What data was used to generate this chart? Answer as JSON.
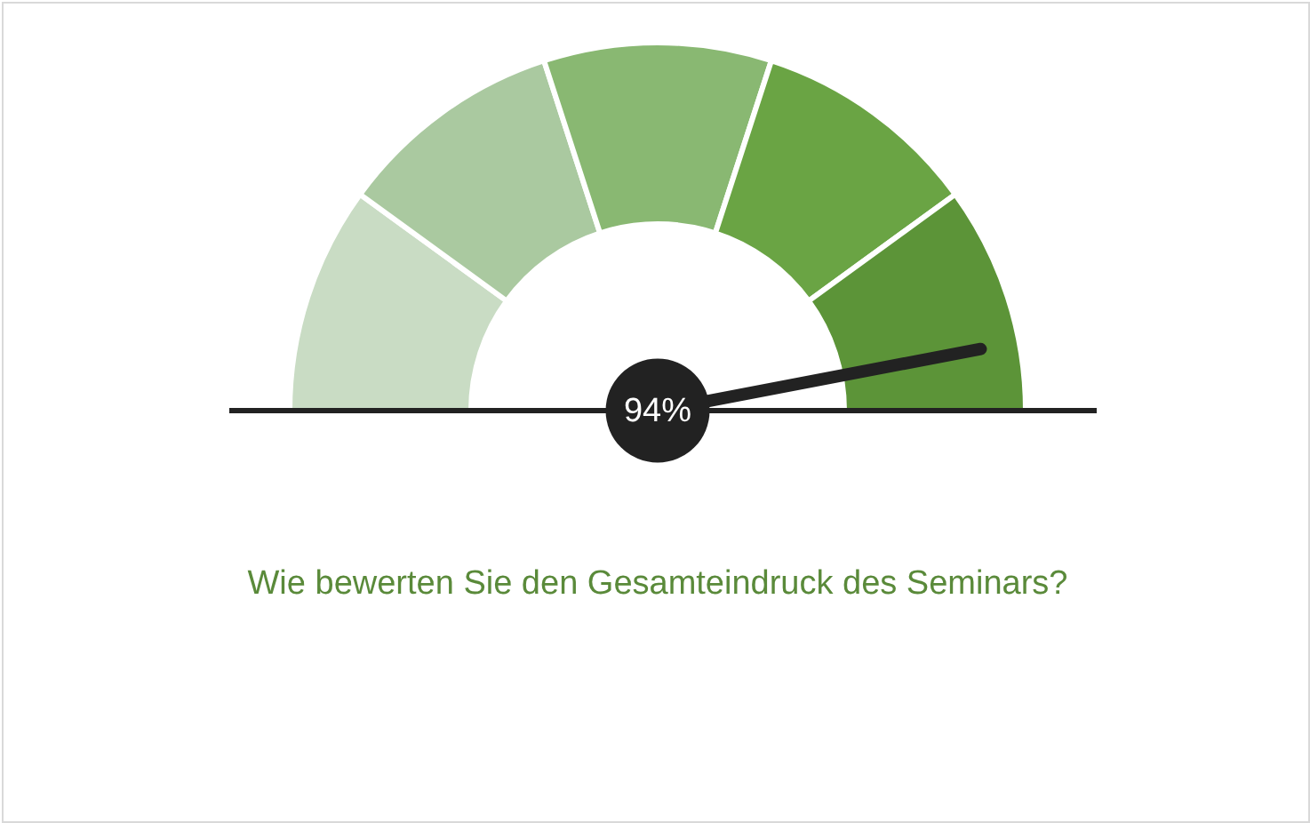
{
  "chart_data": {
    "type": "donut",
    "title": "Wie bewerten Sie den Gesamteindruck des Seminars?",
    "categories": [
      null,
      null,
      null,
      null,
      null
    ],
    "values": [
      20,
      20,
      20,
      20,
      20
    ],
    "colors": [
      "#c9dcc4",
      "#aac9a0",
      "#89b872",
      "#6aa444",
      "#5c9438"
    ],
    "annotations": [
      "94%"
    ]
  }
}
